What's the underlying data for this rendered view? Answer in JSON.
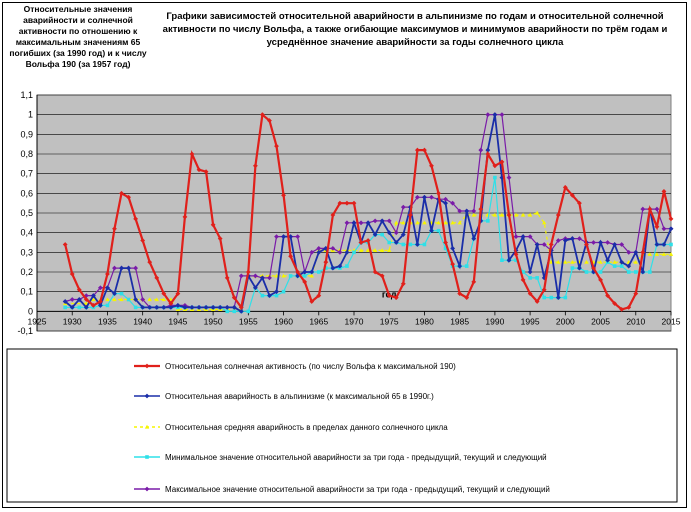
{
  "chart_data": {
    "type": "line",
    "title": "Графики зависимостей относительной аварийности в альпинизме по годам и относительной солнечной активности по числу Вольфа, а также огибающие максимумов и минимумов аварийности по трём годам и усреднённое значение аварийности за годы солнечного цикла",
    "ylabel": "Относительные значения аварийности и солнечной активности по отношению к максимальным значениям 65 погибших (за 1990 год) и к числу Вольфа 190 (за 1957 год)",
    "xlabel": "год",
    "xlim": [
      1925,
      2015
    ],
    "ylim": [
      -0.1,
      1.1
    ],
    "x_ticks": [
      "1925",
      "1930",
      "1935",
      "1940",
      "1945",
      "1950",
      "1955",
      "1960",
      "1965",
      "1970",
      "1975",
      "1980",
      "1985",
      "1990",
      "1995",
      "2000",
      "2005",
      "2010",
      "2015"
    ],
    "y_ticks": [
      "-0,1",
      "0",
      "0,1",
      "0,2",
      "0,3",
      "0,4",
      "0,5",
      "0,6",
      "0,7",
      "0,8",
      "0,9",
      "1",
      "1,1"
    ],
    "grid": true,
    "legend_position": "bottom",
    "series": [
      {
        "name": "Относительная солнечная активность (по числу Вольфа к максимальной 190)",
        "color": "#e0201b",
        "marker": "diamond",
        "x": [
          1929,
          1930,
          1931,
          1932,
          1933,
          1934,
          1935,
          1936,
          1937,
          1938,
          1939,
          1940,
          1941,
          1942,
          1943,
          1944,
          1945,
          1946,
          1947,
          1948,
          1949,
          1950,
          1951,
          1952,
          1953,
          1954,
          1955,
          1956,
          1957,
          1958,
          1959,
          1960,
          1961,
          1962,
          1963,
          1964,
          1965,
          1966,
          1967,
          1968,
          1969,
          1970,
          1971,
          1972,
          1973,
          1974,
          1975,
          1976,
          1977,
          1978,
          1979,
          1980,
          1981,
          1982,
          1983,
          1984,
          1985,
          1986,
          1987,
          1988,
          1989,
          1990,
          1991,
          1992,
          1993,
          1994,
          1995,
          1996,
          1997,
          1998,
          1999,
          2000,
          2001,
          2002,
          2003,
          2004,
          2005,
          2006,
          2007,
          2008,
          2009,
          2010,
          2011,
          2012,
          2013,
          2014,
          2015
        ],
        "y": [
          0.34,
          0.19,
          0.11,
          0.06,
          0.03,
          0.05,
          0.19,
          0.42,
          0.6,
          0.58,
          0.47,
          0.36,
          0.25,
          0.17,
          0.09,
          0.04,
          0.09,
          0.48,
          0.8,
          0.72,
          0.71,
          0.44,
          0.37,
          0.17,
          0.07,
          0.02,
          0.2,
          0.74,
          1.0,
          0.97,
          0.84,
          0.59,
          0.28,
          0.2,
          0.15,
          0.05,
          0.08,
          0.25,
          0.49,
          0.55,
          0.55,
          0.55,
          0.35,
          0.36,
          0.2,
          0.18,
          0.08,
          0.07,
          0.14,
          0.49,
          0.82,
          0.82,
          0.74,
          0.6,
          0.35,
          0.24,
          0.09,
          0.07,
          0.15,
          0.52,
          0.8,
          0.74,
          0.76,
          0.49,
          0.29,
          0.16,
          0.09,
          0.05,
          0.11,
          0.34,
          0.49,
          0.63,
          0.59,
          0.55,
          0.34,
          0.22,
          0.16,
          0.08,
          0.04,
          0.01,
          0.02,
          0.09,
          0.3,
          0.52,
          0.43,
          0.61,
          0.47
        ]
      },
      {
        "name": "Относительная аварийность в альпинизме (к максимальной 65 в 1990г.)",
        "color": "#1a2ea8",
        "marker": "diamond",
        "x": [
          1929,
          1930,
          1931,
          1932,
          1933,
          1934,
          1935,
          1936,
          1937,
          1938,
          1939,
          1940,
          1941,
          1942,
          1943,
          1944,
          1945,
          1946,
          1947,
          1948,
          1949,
          1950,
          1951,
          1952,
          1953,
          1954,
          1955,
          1956,
          1957,
          1958,
          1959,
          1960,
          1961,
          1962,
          1963,
          1964,
          1965,
          1966,
          1967,
          1968,
          1969,
          1970,
          1971,
          1972,
          1973,
          1974,
          1975,
          1976,
          1977,
          1978,
          1979,
          1980,
          1981,
          1982,
          1983,
          1984,
          1985,
          1986,
          1987,
          1988,
          1989,
          1990,
          1991,
          1992,
          1993,
          1994,
          1995,
          1996,
          1997,
          1998,
          1999,
          2000,
          2001,
          2002,
          2003,
          2004,
          2005,
          2006,
          2007,
          2008,
          2009,
          2010,
          2011,
          2012,
          2013,
          2014,
          2015
        ],
        "y": [
          0.05,
          0.02,
          0.06,
          0.02,
          0.08,
          0.03,
          0.12,
          0.09,
          0.22,
          0.22,
          0.06,
          0.02,
          0.02,
          0.02,
          0.02,
          0.02,
          0.03,
          0.02,
          0.02,
          0.02,
          0.02,
          0.02,
          0.02,
          0.02,
          0.02,
          0.0,
          0.18,
          0.12,
          0.17,
          0.08,
          0.1,
          0.38,
          0.38,
          0.18,
          0.2,
          0.2,
          0.3,
          0.32,
          0.22,
          0.23,
          0.3,
          0.45,
          0.35,
          0.45,
          0.39,
          0.46,
          0.4,
          0.35,
          0.39,
          0.53,
          0.34,
          0.58,
          0.41,
          0.57,
          0.55,
          0.32,
          0.23,
          0.51,
          0.37,
          0.46,
          0.82,
          1.0,
          0.68,
          0.26,
          0.31,
          0.38,
          0.2,
          0.34,
          0.17,
          0.31,
          0.07,
          0.36,
          0.37,
          0.22,
          0.35,
          0.2,
          0.35,
          0.26,
          0.34,
          0.25,
          0.23,
          0.3,
          0.2,
          0.52,
          0.34,
          0.34,
          0.42
        ]
      },
      {
        "name": "Относительная средняя аварийность в пределах данного солнечного цикла",
        "color": "#f5f500",
        "marker": "triangle",
        "x": [
          1929,
          1932,
          1933,
          1934,
          1935,
          1936,
          1937,
          1938,
          1939,
          1940,
          1941,
          1942,
          1943,
          1944,
          1945,
          1946,
          1947,
          1948,
          1949,
          1950,
          1951,
          1952,
          1953,
          1954,
          1955,
          1956,
          1957,
          1958,
          1959,
          1960,
          1961,
          1962,
          1963,
          1964,
          1965,
          1966,
          1967,
          1968,
          1969,
          1970,
          1971,
          1972,
          1973,
          1974,
          1975,
          1976,
          1977,
          1978,
          1979,
          1980,
          1981,
          1982,
          1983,
          1984,
          1985,
          1986,
          1987,
          1988,
          1989,
          1990,
          1991,
          1992,
          1993,
          1994,
          1995,
          1996,
          1997,
          1998,
          1999,
          2000,
          2001,
          2002,
          2003,
          2004,
          2005,
          2006,
          2007,
          2008,
          2009,
          2010,
          2011,
          2012,
          2013,
          2014,
          2015
        ],
        "y": [
          0.04,
          0.04,
          0.06,
          0.06,
          0.06,
          0.06,
          0.06,
          0.06,
          0.06,
          0.06,
          0.06,
          0.06,
          0.06,
          0.06,
          0.01,
          0.01,
          0.01,
          0.01,
          0.01,
          0.01,
          0.01,
          0.01,
          0.01,
          0.01,
          0.18,
          0.18,
          0.18,
          0.18,
          0.18,
          0.18,
          0.18,
          0.18,
          0.18,
          0.18,
          0.31,
          0.31,
          0.31,
          0.31,
          0.31,
          0.31,
          0.31,
          0.31,
          0.31,
          0.31,
          0.31,
          0.45,
          0.45,
          0.45,
          0.45,
          0.45,
          0.45,
          0.45,
          0.45,
          0.45,
          0.45,
          0.49,
          0.49,
          0.49,
          0.49,
          0.49,
          0.49,
          0.49,
          0.49,
          0.49,
          0.49,
          0.5,
          0.45,
          0.25,
          0.25,
          0.25,
          0.25,
          0.25,
          0.25,
          0.25,
          0.25,
          0.25,
          0.25,
          0.25,
          0.25,
          0.25,
          0.29,
          0.29,
          0.29,
          0.29,
          0.29
        ]
      },
      {
        "name": "Минимальное значение относительной аварийности за три года - предыдущий, текущий и следующий",
        "color": "#2ee0e8",
        "marker": "square",
        "x": [
          1929,
          1930,
          1931,
          1932,
          1933,
          1934,
          1935,
          1936,
          1937,
          1938,
          1939,
          1940,
          1941,
          1942,
          1943,
          1944,
          1945,
          1946,
          1947,
          1948,
          1949,
          1950,
          1951,
          1952,
          1953,
          1954,
          1955,
          1956,
          1957,
          1958,
          1959,
          1960,
          1961,
          1962,
          1963,
          1964,
          1965,
          1966,
          1967,
          1968,
          1969,
          1970,
          1971,
          1972,
          1973,
          1974,
          1975,
          1976,
          1977,
          1978,
          1979,
          1980,
          1981,
          1982,
          1983,
          1984,
          1985,
          1986,
          1987,
          1988,
          1989,
          1990,
          1991,
          1992,
          1993,
          1994,
          1995,
          1996,
          1997,
          1998,
          1999,
          2000,
          2001,
          2002,
          2003,
          2004,
          2005,
          2006,
          2007,
          2008,
          2009,
          2010,
          2011,
          2012,
          2013,
          2014,
          2015
        ],
        "y": [
          0.02,
          0.02,
          0.02,
          0.02,
          0.02,
          0.03,
          0.03,
          0.09,
          0.09,
          0.06,
          0.02,
          0.02,
          0.02,
          0.02,
          0.02,
          0.02,
          0.02,
          0.02,
          0.02,
          0.02,
          0.02,
          0.02,
          0.02,
          0.0,
          0.0,
          0.0,
          0.0,
          0.12,
          0.08,
          0.08,
          0.08,
          0.1,
          0.18,
          0.18,
          0.18,
          0.2,
          0.2,
          0.22,
          0.22,
          0.22,
          0.23,
          0.3,
          0.35,
          0.35,
          0.39,
          0.39,
          0.35,
          0.35,
          0.34,
          0.34,
          0.34,
          0.34,
          0.41,
          0.41,
          0.32,
          0.23,
          0.23,
          0.23,
          0.37,
          0.46,
          0.46,
          0.68,
          0.26,
          0.26,
          0.26,
          0.2,
          0.17,
          0.17,
          0.07,
          0.07,
          0.07,
          0.07,
          0.22,
          0.22,
          0.2,
          0.2,
          0.2,
          0.25,
          0.23,
          0.23,
          0.2,
          0.2,
          0.2,
          0.2,
          0.34,
          0.34,
          0.34
        ]
      },
      {
        "name": "Максимальное значение относительной аварийности за три года - предыдущий, текущий и следующий",
        "color": "#7a1ba8",
        "marker": "diamond",
        "x": [
          1929,
          1930,
          1931,
          1932,
          1933,
          1934,
          1935,
          1936,
          1937,
          1938,
          1939,
          1940,
          1941,
          1942,
          1943,
          1944,
          1945,
          1946,
          1947,
          1948,
          1949,
          1950,
          1951,
          1952,
          1953,
          1954,
          1955,
          1956,
          1957,
          1958,
          1959,
          1960,
          1961,
          1962,
          1963,
          1964,
          1965,
          1966,
          1967,
          1968,
          1969,
          1970,
          1971,
          1972,
          1973,
          1974,
          1975,
          1976,
          1977,
          1978,
          1979,
          1980,
          1981,
          1982,
          1983,
          1984,
          1985,
          1986,
          1987,
          1988,
          1989,
          1990,
          1991,
          1992,
          1993,
          1994,
          1995,
          1996,
          1997,
          1998,
          1999,
          2000,
          2001,
          2002,
          2003,
          2004,
          2005,
          2006,
          2007,
          2008,
          2009,
          2010,
          2011,
          2012,
          2013,
          2014,
          2015
        ],
        "y": [
          0.05,
          0.06,
          0.06,
          0.08,
          0.08,
          0.12,
          0.12,
          0.22,
          0.22,
          0.22,
          0.22,
          0.06,
          0.02,
          0.02,
          0.02,
          0.03,
          0.03,
          0.03,
          0.02,
          0.02,
          0.02,
          0.02,
          0.02,
          0.02,
          0.02,
          0.18,
          0.18,
          0.18,
          0.17,
          0.17,
          0.38,
          0.38,
          0.38,
          0.38,
          0.2,
          0.3,
          0.32,
          0.32,
          0.32,
          0.3,
          0.45,
          0.45,
          0.45,
          0.45,
          0.46,
          0.46,
          0.46,
          0.4,
          0.53,
          0.53,
          0.58,
          0.58,
          0.58,
          0.57,
          0.57,
          0.55,
          0.51,
          0.51,
          0.51,
          0.82,
          1.0,
          1.0,
          1.0,
          0.68,
          0.38,
          0.38,
          0.38,
          0.34,
          0.34,
          0.31,
          0.36,
          0.37,
          0.37,
          0.37,
          0.35,
          0.35,
          0.35,
          0.35,
          0.34,
          0.34,
          0.3,
          0.3,
          0.52,
          0.52,
          0.52,
          0.42,
          0.42
        ]
      }
    ]
  }
}
